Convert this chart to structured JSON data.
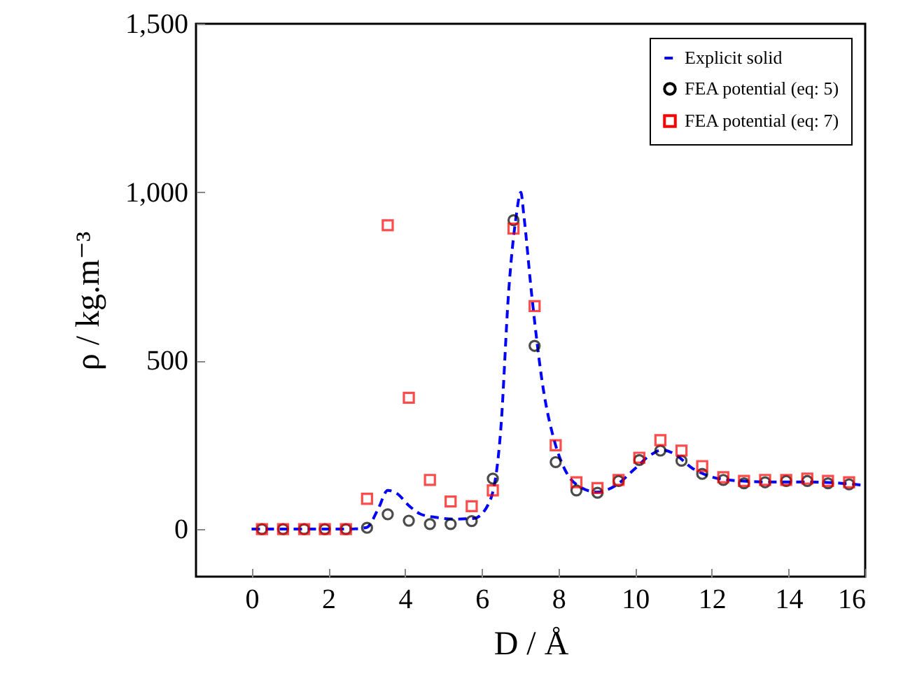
{
  "chart_data": {
    "type": "scatter",
    "xlabel": "D / Å",
    "ylabel": "ρ / kg.m⁻³",
    "xlim": [
      -1.45,
      16
    ],
    "xticks": [
      0,
      2,
      4,
      6,
      8,
      10,
      12,
      14,
      16
    ],
    "ylim": [
      -141,
      1500
    ],
    "yticks": [
      0,
      {
        "value": 500,
        "label": "500"
      },
      {
        "value": 1000,
        "label": "1,000"
      },
      {
        "value": 1500,
        "label": "1,500"
      }
    ],
    "legend": "top right",
    "grid": false,
    "series": [
      {
        "name": "Explicit solid",
        "type": "line",
        "line_style": "dashed",
        "color": "#0000ff",
        "x": [
          0,
          2.5,
          3.0,
          3.3,
          3.55,
          3.8,
          4.1,
          4.4,
          4.8,
          5.3,
          5.8,
          6.2,
          6.5,
          6.7,
          6.9,
          7.02,
          7.1,
          7.3,
          7.6,
          7.9,
          8.2,
          8.5,
          9.0,
          9.5,
          10.0,
          10.4,
          10.7,
          11.0,
          11.5,
          12.0,
          12.5,
          13.5,
          14.5,
          15.5,
          16
        ],
        "values": [
          0,
          0,
          5,
          60,
          115,
          105,
          70,
          45,
          35,
          30,
          32,
          80,
          300,
          700,
          930,
          1000,
          930,
          700,
          420,
          260,
          170,
          130,
          110,
          130,
          180,
          220,
          235,
          225,
          180,
          155,
          145,
          140,
          140,
          135,
          130
        ]
      },
      {
        "name": "FEA potential (eq: 5)",
        "marker": "circle",
        "color": "#000000",
        "x": [
          0.27,
          0.82,
          1.37,
          1.91,
          2.46,
          3.01,
          3.55,
          4.1,
          4.65,
          5.19,
          5.74,
          6.29,
          6.83,
          7.38,
          7.93,
          8.47,
          9.02,
          9.57,
          10.11,
          10.66,
          11.21,
          11.75,
          12.3,
          12.84,
          13.39,
          13.94,
          14.49,
          15.03,
          15.58
        ],
        "values": [
          0,
          0,
          0,
          0,
          0,
          4,
          44,
          25,
          15,
          15,
          24,
          150,
          917,
          544,
          199,
          115,
          108,
          143,
          205,
          233,
          203,
          164,
          146,
          136,
          139,
          143,
          143,
          136,
          133
        ]
      },
      {
        "name": "FEA potential (eq: 7)",
        "marker": "square",
        "color": "#ff0000",
        "x": [
          0.27,
          0.82,
          1.37,
          1.91,
          2.46,
          3.01,
          3.55,
          4.1,
          4.65,
          5.19,
          5.74,
          6.29,
          6.83,
          7.38,
          7.93,
          8.47,
          9.02,
          9.57,
          10.11,
          10.66,
          11.21,
          11.75,
          12.3,
          12.84,
          13.39,
          13.94,
          14.49,
          15.03,
          15.58
        ],
        "values": [
          0,
          0,
          0,
          0,
          0,
          90,
          902,
          390,
          146,
          82,
          68,
          115,
          892,
          662,
          249,
          139,
          122,
          146,
          212,
          264,
          233,
          187,
          154,
          143,
          146,
          146,
          150,
          143,
          139
        ]
      }
    ]
  }
}
